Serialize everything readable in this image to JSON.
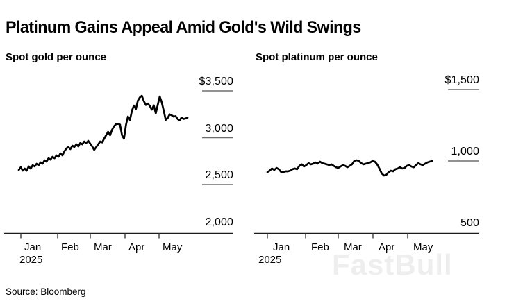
{
  "title": "Platinum Gains Appeal Amid Gold's Wild Swings",
  "source": "Source: Bloomberg",
  "watermark": "FastBull",
  "colors": {
    "background": "#ffffff",
    "text": "#000000",
    "line": "#000000",
    "axis": "#1a1a1a",
    "x_tick": "#3a3a3a",
    "y_tick": "#6e6e6e",
    "watermark": "#eeeeee"
  },
  "chart_data": [
    {
      "type": "line",
      "title": "Spot gold per ounce",
      "xlabel": "",
      "ylabel": "",
      "ylim": [
        2000,
        3500
      ],
      "grid": false,
      "legend": "none",
      "y_ticks": [
        {
          "label": "$3,500",
          "value": 3500
        },
        {
          "label": "3,000",
          "value": 3000
        },
        {
          "label": "2,500",
          "value": 2500
        },
        {
          "label": "2,000",
          "value": 2000
        }
      ],
      "x_ticks": [
        {
          "label": "Jan",
          "sub": "2025"
        },
        {
          "label": "Feb"
        },
        {
          "label": "Mar"
        },
        {
          "label": "Apr"
        },
        {
          "label": "May"
        }
      ],
      "series": [
        {
          "name": "spot-gold",
          "color": "#000000",
          "values": [
            2655,
            2685,
            2648,
            2670,
            2648,
            2693,
            2670,
            2707,
            2693,
            2722,
            2707,
            2737,
            2722,
            2759,
            2744,
            2781,
            2766,
            2796,
            2781,
            2811,
            2796,
            2833,
            2811,
            2855,
            2885,
            2900,
            2878,
            2915,
            2900,
            2929,
            2907,
            2944,
            2929,
            2959,
            2944,
            2966,
            2937,
            2907,
            2870,
            2900,
            2929,
            2959,
            2950,
            2990,
            3026,
            3063,
            3026,
            3085,
            3122,
            3145,
            3148,
            3140,
            3026,
            2989,
            3137,
            3226,
            3189,
            3289,
            3344,
            3307,
            3396,
            3430,
            3448,
            3390,
            3350,
            3365,
            3340,
            3300,
            3345,
            3260,
            3350,
            3440,
            3380,
            3290,
            3190,
            3210,
            3250,
            3240,
            3225,
            3230,
            3200,
            3185,
            3215,
            3200,
            3205,
            3215
          ]
        }
      ]
    },
    {
      "type": "line",
      "title": "Spot platinum per ounce",
      "xlabel": "",
      "ylabel": "",
      "ylim": [
        500,
        1500
      ],
      "grid": false,
      "legend": "none",
      "y_ticks": [
        {
          "label": "$1,500",
          "value": 1500
        },
        {
          "label": "1,000",
          "value": 1000
        },
        {
          "label": "500",
          "value": 500
        }
      ],
      "x_ticks": [
        {
          "label": "Jan",
          "sub": "2025"
        },
        {
          "label": "Feb"
        },
        {
          "label": "Mar"
        },
        {
          "label": "Apr"
        },
        {
          "label": "May"
        }
      ],
      "series": [
        {
          "name": "spot-platinum",
          "color": "#000000",
          "values": [
            922,
            932,
            947,
            937,
            951,
            942,
            922,
            922,
            927,
            927,
            932,
            942,
            947,
            942,
            966,
            976,
            961,
            971,
            985,
            976,
            981,
            990,
            981,
            995,
            985,
            981,
            976,
            971,
            976,
            966,
            956,
            951,
            961,
            971,
            966,
            956,
            966,
            976,
            1000,
            1005,
            1000,
            985,
            976,
            981,
            985,
            990,
            1000,
            995,
            976,
            947,
            913,
            898,
            903,
            922,
            932,
            927,
            942,
            947,
            956,
            947,
            951,
            966,
            971,
            961,
            956,
            971,
            985,
            976,
            971,
            981,
            990,
            995,
            1000
          ]
        }
      ]
    }
  ]
}
